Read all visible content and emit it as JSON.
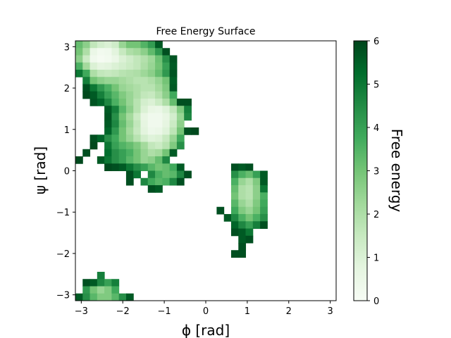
{
  "chart_data": {
    "type": "heatmap",
    "title": "Free Energy Surface",
    "xlabel": "ϕ  [rad]",
    "ylabel": "ψ  [rad]",
    "xlim": [
      -3.14159,
      3.14159
    ],
    "ylim": [
      -3.14159,
      3.14159
    ],
    "grid": false,
    "colormap": "Greens",
    "colormap_low": "#f7fcf5",
    "colormap_high": "#00441b",
    "x_ticks": [
      -3,
      -2,
      -1,
      0,
      1,
      2,
      3
    ],
    "y_ticks": [
      -3,
      -2,
      -1,
      0,
      1,
      2,
      3
    ],
    "x_tick_labels": [
      "−3",
      "−2",
      "−1",
      "0",
      "1",
      "2",
      "3"
    ],
    "y_tick_labels": [
      "−3",
      "−2",
      "−1",
      "0",
      "1",
      "2",
      "3"
    ],
    "colorbar": {
      "label": "Free energy",
      "range": [
        0,
        6
      ],
      "ticks": [
        0,
        1,
        2,
        3,
        4,
        5,
        6
      ],
      "tick_labels": [
        "0",
        "1",
        "2",
        "3",
        "4",
        "5",
        "6"
      ]
    },
    "grid_bins": 36,
    "bin_width_rad": 0.174533,
    "rows": [
      {
        "psi": 3.054,
        "start_phi": -3.054,
        "values": [
          3.2,
          2.6,
          1.6,
          1.2,
          1.0,
          1.3,
          2.4,
          3.0,
          3.0,
          3.5,
          4.1,
          5.6
        ]
      },
      {
        "psi": 2.88,
        "start_phi": -3.054,
        "values": [
          3.0,
          2.0,
          0.5,
          0.2,
          0.3,
          0.8,
          1.5,
          2.0,
          2.2,
          2.6,
          3.3,
          4.2,
          5.8
        ]
      },
      {
        "psi": 2.705,
        "start_phi": -3.054,
        "values": [
          2.6,
          1.4,
          0.3,
          0.1,
          0.2,
          0.5,
          1.0,
          1.3,
          1.6,
          1.9,
          2.3,
          3.1,
          4.4,
          5.7
        ]
      },
      {
        "psi": 2.531,
        "start_phi": -3.054,
        "values": [
          3.6,
          2.2,
          1.0,
          0.7,
          0.8,
          1.0,
          1.2,
          1.4,
          1.6,
          2.0,
          2.4,
          3.0,
          4.0,
          5.6
        ]
      },
      {
        "psi": 2.356,
        "start_phi": -3.054,
        "values": [
          5.0,
          3.8,
          2.0,
          1.6,
          1.5,
          1.6,
          1.8,
          1.9,
          2.0,
          2.3,
          2.6,
          3.2,
          4.2,
          5.7
        ]
      },
      {
        "psi": 2.182,
        "start_phi": -2.88,
        "values": [
          4.8,
          3.0,
          2.6,
          2.4,
          2.4,
          2.2,
          2.0,
          1.8,
          1.8,
          2.0,
          2.4,
          3.0,
          5.5
        ]
      },
      {
        "psi": 2.007,
        "start_phi": -2.88,
        "values": [
          5.8,
          5.0,
          4.2,
          3.6,
          3.0,
          2.4,
          2.2,
          2.0,
          1.8,
          1.8,
          2.2,
          2.8,
          5.6
        ]
      },
      {
        "psi": 1.833,
        "start_phi": -2.88,
        "values": [
          5.9,
          5.6,
          4.8,
          4.0,
          3.4,
          2.8,
          2.4,
          2.0,
          1.6,
          1.5,
          1.9,
          2.6,
          3.8
        ]
      },
      {
        "psi": 1.658,
        "start_phi": -2.705,
        "values": [
          5.7,
          5.4,
          4.6,
          3.6,
          3.0,
          2.4,
          1.8,
          1.2,
          1.0,
          1.4,
          2.0,
          3.2,
          5.8,
          5.8
        ]
      },
      {
        "psi": 1.484,
        "start_phi": -2.356,
        "values": [
          5.6,
          4.8,
          3.4,
          2.6,
          1.8,
          1.0,
          0.6,
          0.5,
          0.9,
          1.6,
          2.8,
          4.8
        ]
      },
      {
        "psi": 1.309,
        "start_phi": -2.356,
        "values": [
          5.7,
          4.4,
          3.0,
          2.2,
          1.4,
          0.6,
          0.3,
          0.3,
          0.6,
          1.2,
          2.4,
          4.6
        ]
      },
      {
        "psi": 1.134,
        "start_phi": -2.356,
        "values": [
          5.6,
          4.6,
          3.2,
          2.4,
          1.6,
          0.7,
          0.3,
          0.3,
          0.7,
          1.4,
          2.6
        ]
      },
      {
        "psi": 0.96,
        "start_phi": -2.356,
        "values": [
          5.4,
          4.2,
          3.0,
          2.2,
          1.5,
          0.8,
          0.4,
          0.5,
          0.9,
          1.7,
          3.0,
          5.8,
          5.9
        ]
      },
      {
        "psi": 0.785,
        "start_phi": -2.705,
        "values": [
          5.8,
          5.4,
          4.4,
          3.8,
          3.0,
          2.4,
          1.8,
          1.2,
          0.9,
          1.0,
          1.5,
          2.4,
          3.8
        ]
      },
      {
        "psi": 0.611,
        "start_phi": -2.705,
        "values": [
          5.9,
          null,
          5.0,
          4.0,
          3.5,
          3.2,
          2.8,
          2.2,
          1.6,
          1.4,
          1.8,
          2.8,
          4.4
        ]
      },
      {
        "psi": 0.436,
        "start_phi": -2.88,
        "values": [
          5.8,
          null,
          null,
          5.2,
          4.4,
          4.0,
          3.6,
          3.0,
          2.4,
          2.0,
          2.2,
          3.0,
          5.6
        ]
      },
      {
        "psi": 0.262,
        "start_phi": -3.054,
        "values": [
          5.9,
          null,
          null,
          5.6,
          5.0,
          4.4,
          4.0,
          3.4,
          3.0,
          2.4,
          2.6,
          3.2,
          4.6
        ]
      },
      {
        "psi": 0.087,
        "start_phi": -2.356,
        "values": [
          5.9,
          5.8,
          5.6,
          5.0,
          4.4,
          4.0,
          3.4,
          3.0,
          3.2,
          3.8,
          5.6
        ]
      },
      {
        "psi": 0.087,
        "start_phi": 0.698,
        "values": [
          5.8,
          5.6,
          5.8
        ]
      },
      {
        "psi": -0.087,
        "start_phi": -1.833,
        "values": [
          5.8,
          5.0,
          null,
          4.6,
          3.6,
          3.2,
          3.4,
          4.6,
          5.8
        ]
      },
      {
        "psi": -0.087,
        "start_phi": 0.698,
        "values": [
          4.4,
          3.6,
          3.2,
          4.0,
          5.6
        ]
      },
      {
        "psi": -0.262,
        "start_phi": -1.833,
        "values": [
          5.8,
          null,
          4.6,
          3.8,
          3.4,
          3.6,
          4.6,
          5.8
        ]
      },
      {
        "psi": -0.262,
        "start_phi": 0.698,
        "values": [
          3.6,
          2.4,
          2.0,
          2.8,
          5.6
        ]
      },
      {
        "psi": -0.436,
        "start_phi": -1.309,
        "values": [
          5.8,
          5.6
        ]
      },
      {
        "psi": -0.436,
        "start_phi": 0.698,
        "values": [
          3.2,
          2.0,
          1.8,
          2.6,
          5.0
        ]
      },
      {
        "psi": -0.611,
        "start_phi": 0.698,
        "values": [
          3.0,
          2.0,
          1.8,
          2.6,
          3.6
        ]
      },
      {
        "psi": -0.785,
        "start_phi": 0.698,
        "values": [
          3.4,
          2.4,
          2.0,
          2.8,
          3.8
        ]
      },
      {
        "psi": -0.96,
        "start_phi": 0.349,
        "values": [
          5.8,
          null,
          3.8,
          2.8,
          2.4,
          3.0,
          4.0
        ]
      },
      {
        "psi": -1.134,
        "start_phi": 0.524,
        "values": [
          5.6,
          4.6,
          3.6,
          3.0,
          3.6,
          4.4
        ]
      },
      {
        "psi": -1.309,
        "start_phi": 0.698,
        "values": [
          5.4,
          4.6,
          4.0,
          4.8,
          5.8
        ]
      },
      {
        "psi": -1.484,
        "start_phi": 0.698,
        "values": [
          5.8,
          5.6,
          5.0
        ]
      },
      {
        "psi": -1.658,
        "start_phi": 0.873,
        "values": [
          5.6,
          5.8
        ]
      },
      {
        "psi": -1.833,
        "start_phi": 0.873,
        "values": [
          5.8
        ]
      },
      {
        "psi": -2.007,
        "start_phi": 0.698,
        "values": [
          5.8,
          5.8
        ]
      },
      {
        "psi": -2.531,
        "start_phi": -2.531,
        "values": [
          4.8
        ]
      },
      {
        "psi": -2.705,
        "start_phi": -2.88,
        "values": [
          5.8,
          5.6,
          4.6,
          4.0,
          4.8
        ]
      },
      {
        "psi": -2.88,
        "start_phi": -2.88,
        "values": [
          4.2,
          3.0,
          2.4,
          2.8,
          3.8
        ]
      },
      {
        "psi": -3.054,
        "start_phi": -3.054,
        "values": [
          5.6,
          4.4,
          3.4,
          2.8,
          2.8,
          3.4,
          4.4,
          5.6
        ]
      }
    ]
  }
}
